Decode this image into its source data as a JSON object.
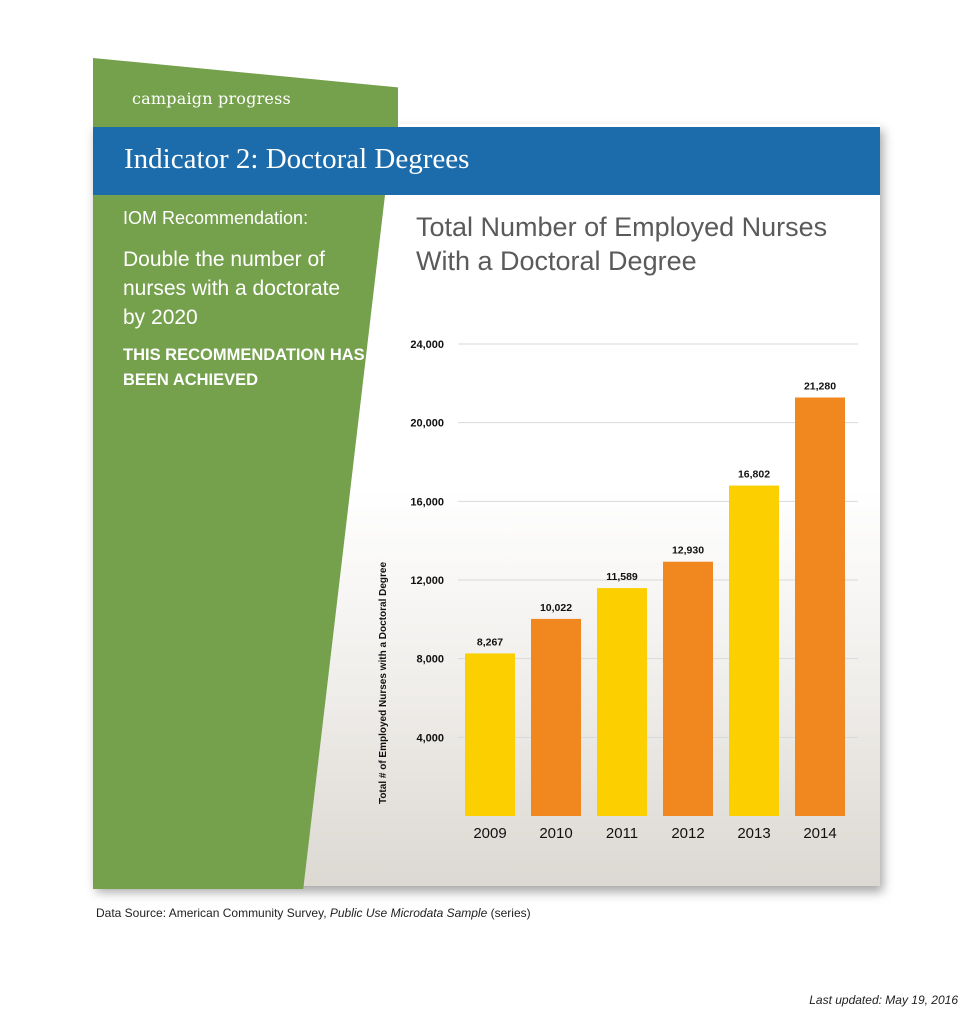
{
  "tab_label": "campaign progress",
  "header_title": "Indicator 2: Doctoral Degrees",
  "recommendation": {
    "label": "IOM Recommendation:",
    "text": "Double the number of nurses with a doctorate by 2020",
    "status": "THIS RECOMMENDATION HAS BEEN ACHIEVED"
  },
  "chart_data": {
    "type": "bar",
    "title": "Total Number of Employed Nurses With a Doctoral Degree",
    "xlabel": "",
    "ylabel": "Total # of Employed Nurses with a Doctoral Degree",
    "categories": [
      "2009",
      "2010",
      "2011",
      "2012",
      "2013",
      "2014"
    ],
    "values": [
      8267,
      10022,
      11589,
      12930,
      16802,
      21280
    ],
    "value_labels": [
      "8,267",
      "10,022",
      "11,589",
      "12,930",
      "16,802",
      "21,280"
    ],
    "bar_colors": [
      "#fcd000",
      "#f0881f",
      "#fcd000",
      "#f0881f",
      "#fcd000",
      "#f0881f"
    ],
    "ylim": [
      0,
      24000
    ],
    "yticks": [
      4000,
      8000,
      12000,
      16000,
      20000,
      24000
    ],
    "ytick_labels": [
      "4,000",
      "8,000",
      "12,000",
      "16,000",
      "20,000",
      "24,000"
    ],
    "grid": true
  },
  "footer": {
    "source_prefix": "Data Source: American Community Survey, ",
    "source_italic": "Public Use Microdata Sample",
    "source_suffix": " (series)",
    "updated": "Last updated: May 19, 2016"
  },
  "colors": {
    "green": "#75a04c",
    "blue": "#1c6bab",
    "yellow": "#fcd000",
    "orange": "#f0881f"
  }
}
